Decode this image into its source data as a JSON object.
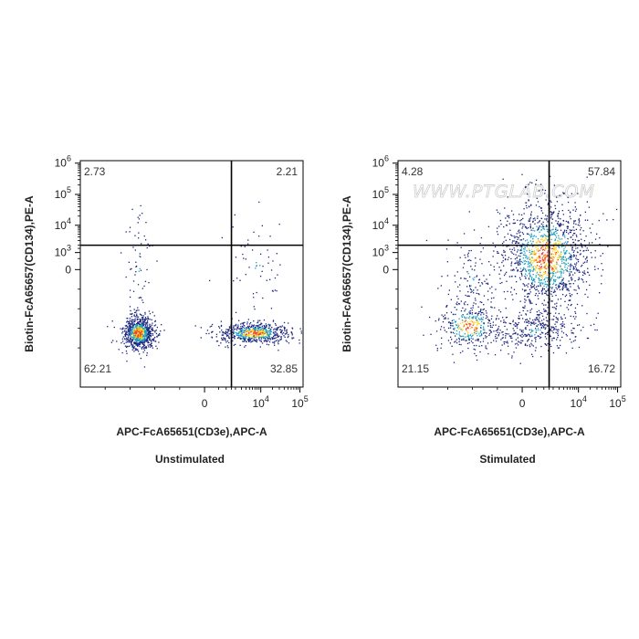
{
  "colors": {
    "gate_line": "#000000",
    "frame": "#000000",
    "density_low": "#1a237e",
    "density_mid": "#1e9fbf",
    "density_high": "#ffd21e",
    "density_peak": "#e8422a"
  },
  "chart_data": [
    {
      "type": "scatter",
      "caption": "Unstimulated",
      "xlabel": "APC-FcA65651(CD3e),APC-A",
      "ylabel": "Biotin-FcA65657(CD134),PE-A",
      "x_scale": "biexponential",
      "y_scale": "biexponential",
      "x_ticks": [
        {
          "label": "0",
          "value": 0
        },
        {
          "label": "10",
          "sup": "4",
          "value": 10000
        },
        {
          "label": "10",
          "sup": "5",
          "value": 100000
        }
      ],
      "y_ticks": [
        {
          "label": "0",
          "value": 0
        },
        {
          "label": "10",
          "sup": "3",
          "value": 1000
        },
        {
          "label": "10",
          "sup": "4",
          "value": 10000
        },
        {
          "label": "10",
          "sup": "5",
          "value": 100000
        },
        {
          "label": "10",
          "sup": "6",
          "value": 1000000
        }
      ],
      "gates": {
        "x": 1500,
        "y": 2000
      },
      "quadrants": {
        "upper_left": "2.73",
        "upper_right": "2.21",
        "lower_left": "62.21",
        "lower_right": "32.85"
      },
      "watermark": ""
    },
    {
      "type": "scatter",
      "caption": "Stimulated",
      "xlabel": "APC-FcA65651(CD3e),APC-A",
      "ylabel": "Biotin-FcA65657(CD134),PE-A",
      "x_scale": "biexponential",
      "y_scale": "biexponential",
      "x_ticks": [
        {
          "label": "0",
          "value": 0
        },
        {
          "label": "10",
          "sup": "4",
          "value": 10000
        },
        {
          "label": "10",
          "sup": "5",
          "value": 100000
        }
      ],
      "y_ticks": [
        {
          "label": "0",
          "value": 0
        },
        {
          "label": "10",
          "sup": "3",
          "value": 1000
        },
        {
          "label": "10",
          "sup": "4",
          "value": 10000
        },
        {
          "label": "10",
          "sup": "5",
          "value": 100000
        },
        {
          "label": "10",
          "sup": "6",
          "value": 1000000
        }
      ],
      "gates": {
        "x": 1500,
        "y": 2000
      },
      "quadrants": {
        "upper_left": "4.28",
        "upper_right": "57.84",
        "lower_left": "21.15",
        "lower_right": "16.72"
      },
      "watermark": "WWW.PTGLAB.COM"
    }
  ]
}
